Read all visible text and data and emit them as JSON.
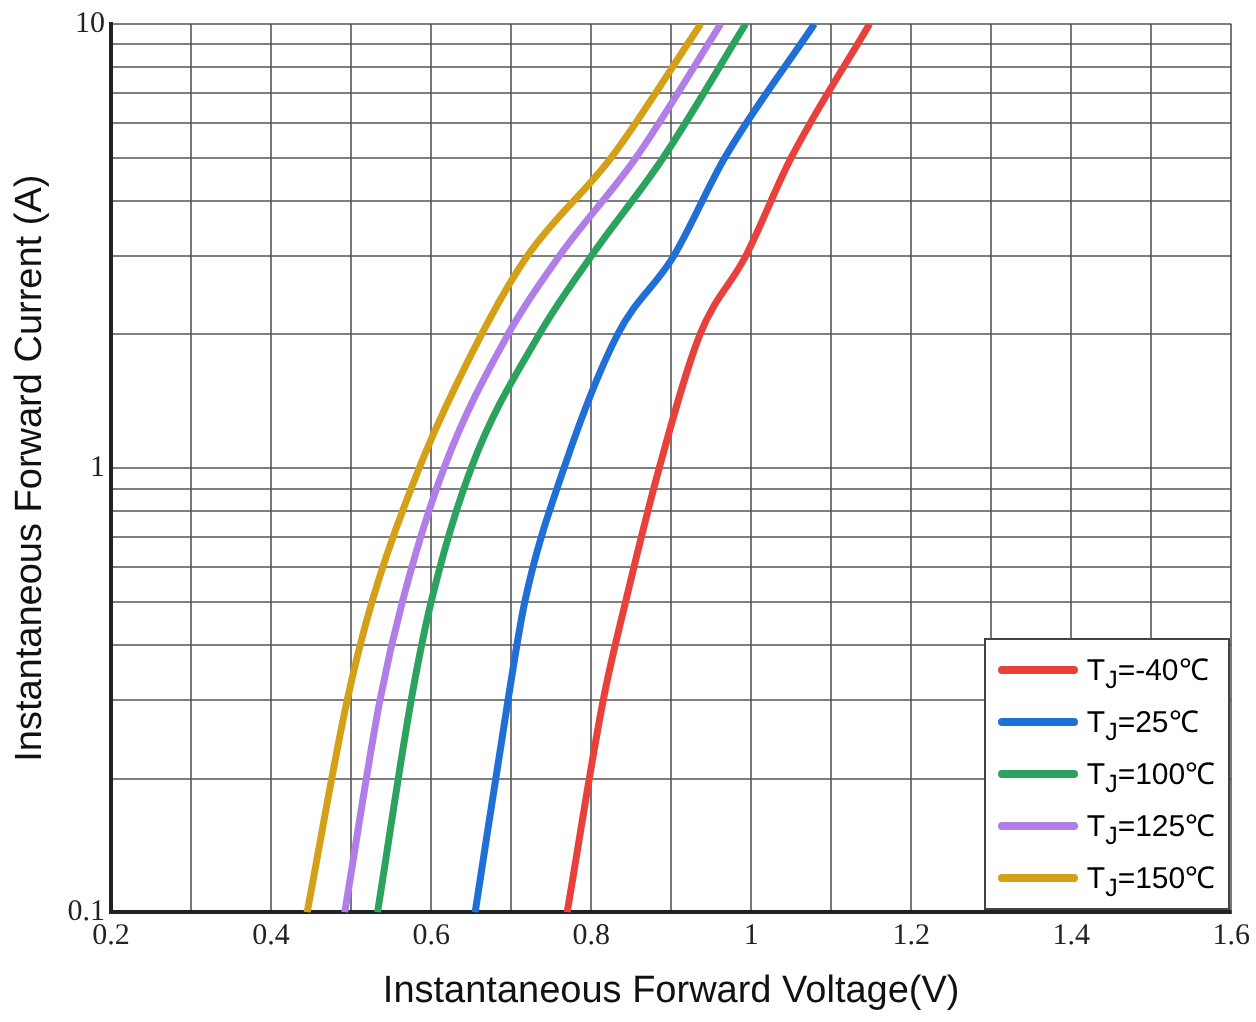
{
  "chart_data": {
    "type": "line",
    "xlabel": "Instantaneous Forward Voltage(V)",
    "ylabel": "Instantaneous Forward Current (A)",
    "log": "y",
    "grid": true,
    "legend": "bottom right",
    "marker": "none",
    "line_style": "solid",
    "xlim": [
      0.2,
      1.6
    ],
    "ylim": [
      0.1,
      10
    ],
    "xticks": [
      0.2,
      {
        "value": 0.3,
        "label": null
      },
      0.4,
      {
        "value": 0.5,
        "label": null
      },
      0.6,
      {
        "value": 0.7,
        "label": null
      },
      0.8,
      {
        "value": 0.9,
        "label": null
      },
      1.0,
      {
        "value": 1.1,
        "label": null
      },
      1.2,
      {
        "value": 1.3,
        "label": null
      },
      1.4,
      {
        "value": 1.5,
        "label": null
      },
      1.6
    ],
    "yticks": [
      0.1,
      {
        "value": 0.2,
        "label": null
      },
      {
        "value": 0.3,
        "label": null
      },
      {
        "value": 0.4,
        "label": null
      },
      {
        "value": 0.5,
        "label": null
      },
      {
        "value": 0.6,
        "label": null
      },
      {
        "value": 0.7,
        "label": null
      },
      {
        "value": 0.8,
        "label": null
      },
      {
        "value": 0.9,
        "label": null
      },
      1,
      {
        "value": 2,
        "label": null
      },
      {
        "value": 3,
        "label": null
      },
      {
        "value": 4,
        "label": null
      },
      {
        "value": 5,
        "label": null
      },
      {
        "value": 6,
        "label": null
      },
      {
        "value": 7,
        "label": null
      },
      {
        "value": 8,
        "label": null
      },
      {
        "value": 9,
        "label": null
      },
      10
    ],
    "series": [
      {
        "name": "T$_{J}$=-40℃",
        "color": "#e8413c",
        "x": [
          0.77,
          0.815,
          0.843,
          0.885,
          0.936,
          0.993,
          1.05,
          1.148
        ],
        "values": [
          0.1,
          0.3,
          0.5,
          1,
          2,
          3,
          5,
          10
        ]
      },
      {
        "name": "T$_{J}$=25℃",
        "color": "#1f6fd6",
        "x": [
          0.655,
          0.696,
          0.717,
          0.766,
          0.833,
          0.903,
          0.967,
          1.079
        ],
        "values": [
          0.1,
          0.3,
          0.5,
          1,
          2,
          3,
          5,
          10
        ]
      },
      {
        "name": "T$_{J}$=100℃",
        "color": "#2ca25f",
        "x": [
          0.533,
          0.575,
          0.6,
          0.65,
          0.735,
          0.8,
          0.89,
          0.993
        ],
        "values": [
          0.1,
          0.3,
          0.5,
          1,
          2,
          3,
          5,
          10
        ]
      },
      {
        "name": "T$_{J}$=125℃",
        "color": "#b07ee6",
        "x": [
          0.492,
          0.536,
          0.564,
          0.616,
          0.696,
          0.76,
          0.856,
          0.962
        ],
        "values": [
          0.1,
          0.3,
          0.5,
          1,
          2,
          3,
          5,
          10
        ]
      },
      {
        "name": "T$_{J}$=150℃",
        "color": "#d4a017",
        "x": [
          0.445,
          0.495,
          0.526,
          0.585,
          0.663,
          0.72,
          0.825,
          0.937
        ],
        "values": [
          0.1,
          0.3,
          0.5,
          1,
          2,
          3,
          5,
          10
        ]
      }
    ]
  }
}
